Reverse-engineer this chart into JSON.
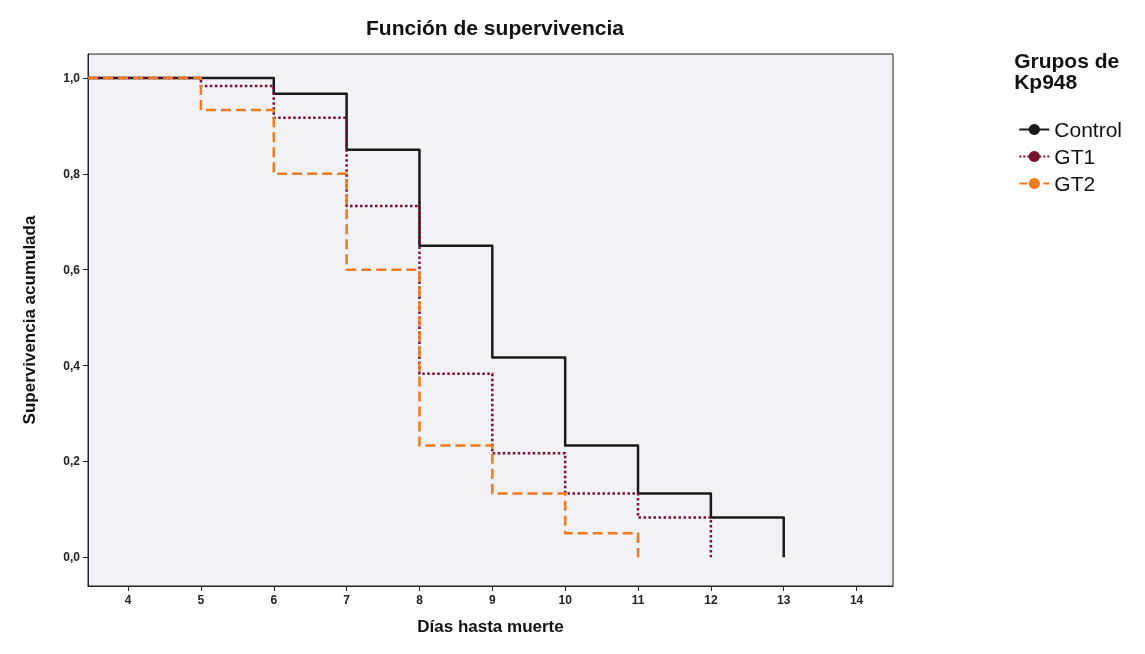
{
  "chart_data": {
    "type": "step",
    "title": "Función de supervivencia",
    "xlabel": "Días hasta muerte",
    "ylabel": "Supervivencia acumulada",
    "legend_title": "Grupos de Kp948",
    "legend": "right",
    "grid": false,
    "xlim": [
      3.45,
      14.5
    ],
    "xticks": [
      4,
      5,
      6,
      7,
      8,
      9,
      10,
      11,
      12,
      13,
      14
    ],
    "ylim": [
      -0.06,
      1.05
    ],
    "yticks": [
      {
        "value": 0,
        "label": "0,0"
      },
      {
        "value": 0.2,
        "label": "0,2"
      },
      {
        "value": 0.4,
        "label": "0,4"
      },
      {
        "value": 0.6,
        "label": "0,6"
      },
      {
        "value": 0.8,
        "label": "0,8"
      },
      {
        "value": 1,
        "label": "1,0"
      }
    ],
    "series": [
      {
        "name": "Control",
        "color": "#1a1a1a",
        "line_style": "solid",
        "x": [
          3.45,
          6,
          7,
          8,
          9,
          10,
          11,
          12,
          13
        ],
        "values": [
          1,
          0.967,
          0.85,
          0.65,
          0.417,
          0.233,
          0.133,
          0.083,
          0
        ]
      },
      {
        "name": "GT1",
        "color": "#7a1030",
        "line_style": "dotted",
        "x": [
          3.45,
          5,
          6,
          7,
          8,
          9,
          10,
          11,
          12
        ],
        "values": [
          1,
          0.983,
          0.917,
          0.733,
          0.383,
          0.217,
          0.133,
          0.083,
          0
        ]
      },
      {
        "name": "GT2",
        "color": "#f07a20",
        "line_style": "dashed",
        "x": [
          3.45,
          5,
          6,
          7,
          8,
          9,
          10,
          11
        ],
        "values": [
          1,
          0.933,
          0.8,
          0.6,
          0.233,
          0.133,
          0.05,
          0
        ]
      }
    ]
  }
}
